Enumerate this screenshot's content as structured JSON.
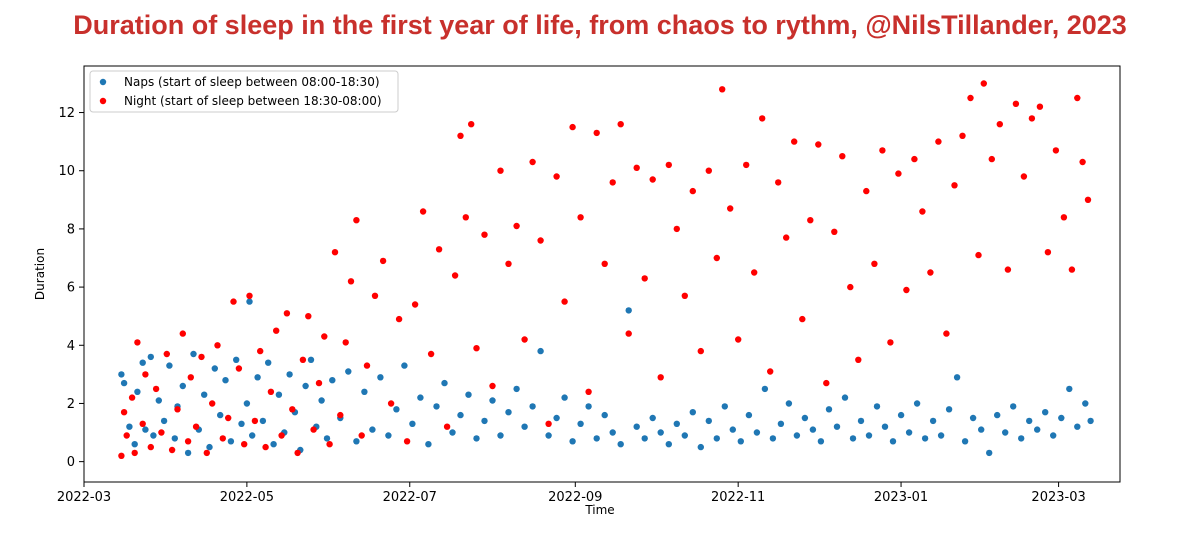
{
  "title": "Duration of sleep in the first year of life, from chaos to rythm, @NilsTillander, 2023",
  "chart_data": {
    "type": "scatter",
    "xlabel": "Time",
    "ylabel": "Duration",
    "xlim": [
      "2022-03-01",
      "2023-03-24"
    ],
    "ylim": [
      -0.7,
      13.6
    ],
    "x_ticks": [
      "2022-03",
      "2022-05",
      "2022-07",
      "2022-09",
      "2022-11",
      "2023-01",
      "2023-03"
    ],
    "y_ticks": [
      0,
      2,
      4,
      6,
      8,
      10,
      12
    ],
    "legend_position": "top-left",
    "grid": false,
    "series": [
      {
        "name": "Naps (start of sleep between 08:00-18:30)",
        "color": "#1f77b4",
        "points": [
          [
            "2022-03-15",
            3.0
          ],
          [
            "2022-03-16",
            2.7
          ],
          [
            "2022-03-18",
            1.2
          ],
          [
            "2022-03-20",
            0.6
          ],
          [
            "2022-03-21",
            2.4
          ],
          [
            "2022-03-23",
            3.4
          ],
          [
            "2022-03-24",
            1.1
          ],
          [
            "2022-03-26",
            3.6
          ],
          [
            "2022-03-27",
            0.9
          ],
          [
            "2022-03-29",
            2.1
          ],
          [
            "2022-03-31",
            1.4
          ],
          [
            "2022-04-02",
            3.3
          ],
          [
            "2022-04-04",
            0.8
          ],
          [
            "2022-04-05",
            1.9
          ],
          [
            "2022-04-07",
            2.6
          ],
          [
            "2022-04-09",
            0.3
          ],
          [
            "2022-04-11",
            3.7
          ],
          [
            "2022-04-13",
            1.1
          ],
          [
            "2022-04-15",
            2.3
          ],
          [
            "2022-04-17",
            0.5
          ],
          [
            "2022-04-19",
            3.2
          ],
          [
            "2022-04-21",
            1.6
          ],
          [
            "2022-04-23",
            2.8
          ],
          [
            "2022-04-25",
            0.7
          ],
          [
            "2022-04-27",
            3.5
          ],
          [
            "2022-04-29",
            1.3
          ],
          [
            "2022-05-01",
            2.0
          ],
          [
            "2022-05-02",
            5.5
          ],
          [
            "2022-05-03",
            0.9
          ],
          [
            "2022-05-05",
            2.9
          ],
          [
            "2022-05-07",
            1.4
          ],
          [
            "2022-05-09",
            3.4
          ],
          [
            "2022-05-11",
            0.6
          ],
          [
            "2022-05-13",
            2.3
          ],
          [
            "2022-05-15",
            1.0
          ],
          [
            "2022-05-17",
            3.0
          ],
          [
            "2022-05-19",
            1.7
          ],
          [
            "2022-05-21",
            0.4
          ],
          [
            "2022-05-23",
            2.6
          ],
          [
            "2022-05-25",
            3.5
          ],
          [
            "2022-05-27",
            1.2
          ],
          [
            "2022-05-29",
            2.1
          ],
          [
            "2022-05-31",
            0.8
          ],
          [
            "2022-06-02",
            2.8
          ],
          [
            "2022-06-05",
            1.5
          ],
          [
            "2022-06-08",
            3.1
          ],
          [
            "2022-06-11",
            0.7
          ],
          [
            "2022-06-14",
            2.4
          ],
          [
            "2022-06-17",
            1.1
          ],
          [
            "2022-06-20",
            2.9
          ],
          [
            "2022-06-23",
            0.9
          ],
          [
            "2022-06-26",
            1.8
          ],
          [
            "2022-06-29",
            3.3
          ],
          [
            "2022-07-02",
            1.3
          ],
          [
            "2022-07-05",
            2.2
          ],
          [
            "2022-07-08",
            0.6
          ],
          [
            "2022-07-11",
            1.9
          ],
          [
            "2022-07-14",
            2.7
          ],
          [
            "2022-07-17",
            1.0
          ],
          [
            "2022-07-20",
            1.6
          ],
          [
            "2022-07-23",
            2.3
          ],
          [
            "2022-07-26",
            0.8
          ],
          [
            "2022-07-29",
            1.4
          ],
          [
            "2022-08-01",
            2.1
          ],
          [
            "2022-08-04",
            0.9
          ],
          [
            "2022-08-07",
            1.7
          ],
          [
            "2022-08-10",
            2.5
          ],
          [
            "2022-08-13",
            1.2
          ],
          [
            "2022-08-16",
            1.9
          ],
          [
            "2022-08-19",
            3.8
          ],
          [
            "2022-08-22",
            0.9
          ],
          [
            "2022-08-25",
            1.5
          ],
          [
            "2022-08-28",
            2.2
          ],
          [
            "2022-08-31",
            0.7
          ],
          [
            "2022-09-03",
            1.3
          ],
          [
            "2022-09-06",
            1.9
          ],
          [
            "2022-09-09",
            0.8
          ],
          [
            "2022-09-12",
            1.6
          ],
          [
            "2022-09-15",
            1.0
          ],
          [
            "2022-09-18",
            0.6
          ],
          [
            "2022-09-21",
            5.2
          ],
          [
            "2022-09-24",
            1.2
          ],
          [
            "2022-09-27",
            0.8
          ],
          [
            "2022-09-30",
            1.5
          ],
          [
            "2022-10-03",
            1.0
          ],
          [
            "2022-10-06",
            0.6
          ],
          [
            "2022-10-09",
            1.3
          ],
          [
            "2022-10-12",
            0.9
          ],
          [
            "2022-10-15",
            1.7
          ],
          [
            "2022-10-18",
            0.5
          ],
          [
            "2022-10-21",
            1.4
          ],
          [
            "2022-10-24",
            0.8
          ],
          [
            "2022-10-27",
            1.9
          ],
          [
            "2022-10-30",
            1.1
          ],
          [
            "2022-11-02",
            0.7
          ],
          [
            "2022-11-05",
            1.6
          ],
          [
            "2022-11-08",
            1.0
          ],
          [
            "2022-11-11",
            2.5
          ],
          [
            "2022-11-14",
            0.8
          ],
          [
            "2022-11-17",
            1.3
          ],
          [
            "2022-11-20",
            2.0
          ],
          [
            "2022-11-23",
            0.9
          ],
          [
            "2022-11-26",
            1.5
          ],
          [
            "2022-11-29",
            1.1
          ],
          [
            "2022-12-02",
            0.7
          ],
          [
            "2022-12-05",
            1.8
          ],
          [
            "2022-12-08",
            1.2
          ],
          [
            "2022-12-11",
            2.2
          ],
          [
            "2022-12-14",
            0.8
          ],
          [
            "2022-12-17",
            1.4
          ],
          [
            "2022-12-20",
            0.9
          ],
          [
            "2022-12-23",
            1.9
          ],
          [
            "2022-12-26",
            1.2
          ],
          [
            "2022-12-29",
            0.7
          ],
          [
            "2023-01-01",
            1.6
          ],
          [
            "2023-01-04",
            1.0
          ],
          [
            "2023-01-07",
            2.0
          ],
          [
            "2023-01-10",
            0.8
          ],
          [
            "2023-01-13",
            1.4
          ],
          [
            "2023-01-16",
            0.9
          ],
          [
            "2023-01-19",
            1.8
          ],
          [
            "2023-01-22",
            2.9
          ],
          [
            "2023-01-25",
            0.7
          ],
          [
            "2023-01-28",
            1.5
          ],
          [
            "2023-01-31",
            1.1
          ],
          [
            "2023-02-03",
            0.3
          ],
          [
            "2023-02-06",
            1.6
          ],
          [
            "2023-02-09",
            1.0
          ],
          [
            "2023-02-12",
            1.9
          ],
          [
            "2023-02-15",
            0.8
          ],
          [
            "2023-02-18",
            1.4
          ],
          [
            "2023-02-21",
            1.1
          ],
          [
            "2023-02-24",
            1.7
          ],
          [
            "2023-02-27",
            0.9
          ],
          [
            "2023-03-02",
            1.5
          ],
          [
            "2023-03-05",
            2.5
          ],
          [
            "2023-03-08",
            1.2
          ],
          [
            "2023-03-11",
            2.0
          ],
          [
            "2023-03-13",
            1.4
          ]
        ]
      },
      {
        "name": "Night (start of sleep between 18:30-08:00)",
        "color": "#ff0000",
        "points": [
          [
            "2022-03-15",
            0.2
          ],
          [
            "2022-03-16",
            1.7
          ],
          [
            "2022-03-17",
            0.9
          ],
          [
            "2022-03-19",
            2.2
          ],
          [
            "2022-03-20",
            0.3
          ],
          [
            "2022-03-21",
            4.1
          ],
          [
            "2022-03-23",
            1.3
          ],
          [
            "2022-03-24",
            3.0
          ],
          [
            "2022-03-26",
            0.5
          ],
          [
            "2022-03-28",
            2.5
          ],
          [
            "2022-03-30",
            1.0
          ],
          [
            "2022-04-01",
            3.7
          ],
          [
            "2022-04-03",
            0.4
          ],
          [
            "2022-04-05",
            1.8
          ],
          [
            "2022-04-07",
            4.4
          ],
          [
            "2022-04-09",
            0.7
          ],
          [
            "2022-04-10",
            2.9
          ],
          [
            "2022-04-12",
            1.2
          ],
          [
            "2022-04-14",
            3.6
          ],
          [
            "2022-04-16",
            0.3
          ],
          [
            "2022-04-18",
            2.0
          ],
          [
            "2022-04-20",
            4.0
          ],
          [
            "2022-04-22",
            0.8
          ],
          [
            "2022-04-24",
            1.5
          ],
          [
            "2022-04-26",
            5.5
          ],
          [
            "2022-04-28",
            3.2
          ],
          [
            "2022-04-30",
            0.6
          ],
          [
            "2022-05-02",
            5.7
          ],
          [
            "2022-05-04",
            1.4
          ],
          [
            "2022-05-06",
            3.8
          ],
          [
            "2022-05-08",
            0.5
          ],
          [
            "2022-05-10",
            2.4
          ],
          [
            "2022-05-12",
            4.5
          ],
          [
            "2022-05-14",
            0.9
          ],
          [
            "2022-05-16",
            5.1
          ],
          [
            "2022-05-18",
            1.8
          ],
          [
            "2022-05-20",
            0.3
          ],
          [
            "2022-05-22",
            3.5
          ],
          [
            "2022-05-24",
            5.0
          ],
          [
            "2022-05-26",
            1.1
          ],
          [
            "2022-05-28",
            2.7
          ],
          [
            "2022-05-30",
            4.3
          ],
          [
            "2022-06-01",
            0.6
          ],
          [
            "2022-06-03",
            7.2
          ],
          [
            "2022-06-05",
            1.6
          ],
          [
            "2022-06-07",
            4.1
          ],
          [
            "2022-06-09",
            6.2
          ],
          [
            "2022-06-11",
            8.3
          ],
          [
            "2022-06-13",
            0.9
          ],
          [
            "2022-06-15",
            3.3
          ],
          [
            "2022-06-18",
            5.7
          ],
          [
            "2022-06-21",
            6.9
          ],
          [
            "2022-06-24",
            2.0
          ],
          [
            "2022-06-27",
            4.9
          ],
          [
            "2022-06-30",
            0.7
          ],
          [
            "2022-07-03",
            5.4
          ],
          [
            "2022-07-06",
            8.6
          ],
          [
            "2022-07-09",
            3.7
          ],
          [
            "2022-07-12",
            7.3
          ],
          [
            "2022-07-15",
            1.2
          ],
          [
            "2022-07-18",
            6.4
          ],
          [
            "2022-07-20",
            11.2
          ],
          [
            "2022-07-22",
            8.4
          ],
          [
            "2022-07-24",
            11.6
          ],
          [
            "2022-07-26",
            3.9
          ],
          [
            "2022-07-29",
            7.8
          ],
          [
            "2022-08-01",
            2.6
          ],
          [
            "2022-08-04",
            10.0
          ],
          [
            "2022-08-07",
            6.8
          ],
          [
            "2022-08-10",
            8.1
          ],
          [
            "2022-08-13",
            4.2
          ],
          [
            "2022-08-16",
            10.3
          ],
          [
            "2022-08-19",
            7.6
          ],
          [
            "2022-08-22",
            1.3
          ],
          [
            "2022-08-25",
            9.8
          ],
          [
            "2022-08-28",
            5.5
          ],
          [
            "2022-08-31",
            11.5
          ],
          [
            "2022-09-03",
            8.4
          ],
          [
            "2022-09-06",
            2.4
          ],
          [
            "2022-09-09",
            11.3
          ],
          [
            "2022-09-12",
            6.8
          ],
          [
            "2022-09-15",
            9.6
          ],
          [
            "2022-09-18",
            11.6
          ],
          [
            "2022-09-21",
            4.4
          ],
          [
            "2022-09-24",
            10.1
          ],
          [
            "2022-09-27",
            6.3
          ],
          [
            "2022-09-30",
            9.7
          ],
          [
            "2022-10-03",
            2.9
          ],
          [
            "2022-10-06",
            10.2
          ],
          [
            "2022-10-09",
            8.0
          ],
          [
            "2022-10-12",
            5.7
          ],
          [
            "2022-10-15",
            9.3
          ],
          [
            "2022-10-18",
            3.8
          ],
          [
            "2022-10-21",
            10.0
          ],
          [
            "2022-10-24",
            7.0
          ],
          [
            "2022-10-26",
            12.8
          ],
          [
            "2022-10-29",
            8.7
          ],
          [
            "2022-11-01",
            4.2
          ],
          [
            "2022-11-04",
            10.2
          ],
          [
            "2022-11-07",
            6.5
          ],
          [
            "2022-11-10",
            11.8
          ],
          [
            "2022-11-13",
            3.1
          ],
          [
            "2022-11-16",
            9.6
          ],
          [
            "2022-11-19",
            7.7
          ],
          [
            "2022-11-22",
            11.0
          ],
          [
            "2022-11-25",
            4.9
          ],
          [
            "2022-11-28",
            8.3
          ],
          [
            "2022-12-01",
            10.9
          ],
          [
            "2022-12-04",
            2.7
          ],
          [
            "2022-12-07",
            7.9
          ],
          [
            "2022-12-10",
            10.5
          ],
          [
            "2022-12-13",
            6.0
          ],
          [
            "2022-12-16",
            3.5
          ],
          [
            "2022-12-19",
            9.3
          ],
          [
            "2022-12-22",
            6.8
          ],
          [
            "2022-12-25",
            10.7
          ],
          [
            "2022-12-28",
            4.1
          ],
          [
            "2022-12-31",
            9.9
          ],
          [
            "2023-01-03",
            5.9
          ],
          [
            "2023-01-06",
            10.4
          ],
          [
            "2023-01-09",
            8.6
          ],
          [
            "2023-01-12",
            6.5
          ],
          [
            "2023-01-15",
            11.0
          ],
          [
            "2023-01-18",
            4.4
          ],
          [
            "2023-01-21",
            9.5
          ],
          [
            "2023-01-24",
            11.2
          ],
          [
            "2023-01-27",
            12.5
          ],
          [
            "2023-01-30",
            7.1
          ],
          [
            "2023-02-01",
            13.0
          ],
          [
            "2023-02-04",
            10.4
          ],
          [
            "2023-02-07",
            11.6
          ],
          [
            "2023-02-10",
            6.6
          ],
          [
            "2023-02-13",
            12.3
          ],
          [
            "2023-02-16",
            9.8
          ],
          [
            "2023-02-19",
            11.8
          ],
          [
            "2023-02-22",
            12.2
          ],
          [
            "2023-02-25",
            7.2
          ],
          [
            "2023-02-28",
            10.7
          ],
          [
            "2023-03-03",
            8.4
          ],
          [
            "2023-03-06",
            6.6
          ],
          [
            "2023-03-08",
            12.5
          ],
          [
            "2023-03-10",
            10.3
          ],
          [
            "2023-03-12",
            9.0
          ]
        ]
      }
    ]
  }
}
